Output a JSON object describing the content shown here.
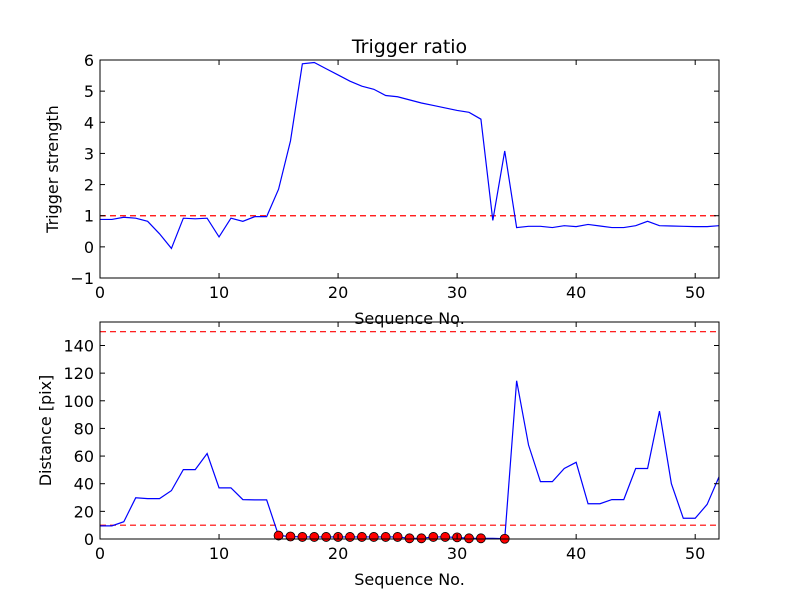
{
  "chart_data": [
    {
      "type": "line",
      "title": "Trigger ratio",
      "xlabel": "Sequence No.",
      "ylabel": "Trigger strength",
      "xlim": [
        0,
        52
      ],
      "ylim": [
        -1,
        6
      ],
      "xticks": [
        0,
        10,
        20,
        30,
        40,
        50
      ],
      "yticks": [
        -1,
        0,
        1,
        2,
        3,
        4,
        5,
        6
      ],
      "xtick_labels": [
        "0",
        "10",
        "20",
        "30",
        "40",
        "50"
      ],
      "ytick_labels": [
        "−1",
        "0",
        "1",
        "2",
        "3",
        "4",
        "5",
        "6"
      ],
      "grid": false,
      "series": [
        {
          "color": "#0000ff",
          "x": [
            0,
            1,
            2,
            3,
            4,
            5,
            6,
            7,
            8,
            9,
            10,
            11,
            12,
            13,
            14,
            15,
            16,
            17,
            18,
            19,
            20,
            21,
            22,
            23,
            24,
            25,
            26,
            27,
            28,
            29,
            30,
            31,
            32,
            33,
            34,
            35,
            36,
            37,
            38,
            39,
            40,
            41,
            42,
            43,
            44,
            45,
            46,
            47,
            48,
            49,
            50,
            51,
            52
          ],
          "y": [
            0.88,
            0.88,
            0.95,
            0.92,
            0.82,
            0.42,
            -0.05,
            0.92,
            0.9,
            0.92,
            0.32,
            0.92,
            0.82,
            0.97,
            0.97,
            1.85,
            3.4,
            5.88,
            5.92,
            5.72,
            5.52,
            5.32,
            5.16,
            5.06,
            4.86,
            4.82,
            4.72,
            4.62,
            4.54,
            4.46,
            4.38,
            4.32,
            4.1,
            0.85,
            3.08,
            0.62,
            0.66,
            0.66,
            0.62,
            0.68,
            0.65,
            0.72,
            0.67,
            0.62,
            0.62,
            0.68,
            0.82,
            0.68,
            0.67,
            0.66,
            0.65,
            0.65,
            0.68
          ]
        }
      ],
      "hlines": [
        {
          "y": 1,
          "color": "#ff0000",
          "style": "dashed"
        }
      ]
    },
    {
      "type": "line",
      "title": "",
      "xlabel": "Sequence No.",
      "ylabel": "Distance [pix]",
      "xlim": [
        0,
        52
      ],
      "ylim": [
        0,
        157
      ],
      "xticks": [
        0,
        10,
        20,
        30,
        40,
        50
      ],
      "yticks": [
        0,
        20,
        40,
        60,
        80,
        100,
        120,
        140
      ],
      "xtick_labels": [
        "0",
        "10",
        "20",
        "30",
        "40",
        "50"
      ],
      "ytick_labels": [
        "0",
        "20",
        "40",
        "60",
        "80",
        "100",
        "120",
        "140"
      ],
      "grid": false,
      "series": [
        {
          "color": "#0000ff",
          "x": [
            0,
            1,
            2,
            3,
            4,
            5,
            6,
            7,
            8,
            9,
            10,
            11,
            12,
            13,
            14,
            15,
            16,
            17,
            18,
            19,
            20,
            21,
            22,
            23,
            24,
            25,
            26,
            27,
            28,
            29,
            30,
            31,
            32,
            33,
            34,
            35,
            36,
            37,
            38,
            39,
            40,
            41,
            42,
            43,
            44,
            45,
            46,
            47,
            48,
            49,
            50,
            51,
            52
          ],
          "y": [
            9.5,
            9.5,
            12.5,
            29.8,
            29.2,
            29.2,
            35,
            50.2,
            50.2,
            61.8,
            37,
            37,
            28.5,
            28.3,
            28.3,
            2.5,
            1.8,
            1.5,
            1.5,
            1.5,
            1.5,
            1.5,
            1.5,
            1.5,
            1.5,
            1.5,
            0.5,
            0.5,
            1.5,
            1.5,
            1.2,
            0.5,
            0.5,
            0.5,
            0.2,
            114.5,
            68,
            41.5,
            41.5,
            51,
            55.5,
            25.5,
            25.5,
            28.5,
            28.5,
            51,
            51,
            92.5,
            40,
            15,
            15,
            25,
            45
          ]
        },
        {
          "color": "#ff0000",
          "marker": "circle",
          "x": [
            15,
            16,
            17,
            18,
            19,
            20,
            21,
            22,
            23,
            24,
            25,
            26,
            27,
            28,
            29,
            30,
            31,
            32,
            34
          ],
          "y": [
            2.5,
            1.8,
            1.5,
            1.5,
            1.5,
            1.5,
            1.5,
            1.5,
            1.5,
            1.5,
            1.5,
            0.5,
            0.5,
            1.5,
            1.5,
            1.2,
            0.5,
            0.5,
            0.2
          ]
        }
      ],
      "hlines": [
        {
          "y": 10,
          "color": "#ff0000",
          "style": "dashed"
        },
        {
          "y": 150,
          "color": "#ff0000",
          "style": "dashed"
        }
      ]
    }
  ]
}
